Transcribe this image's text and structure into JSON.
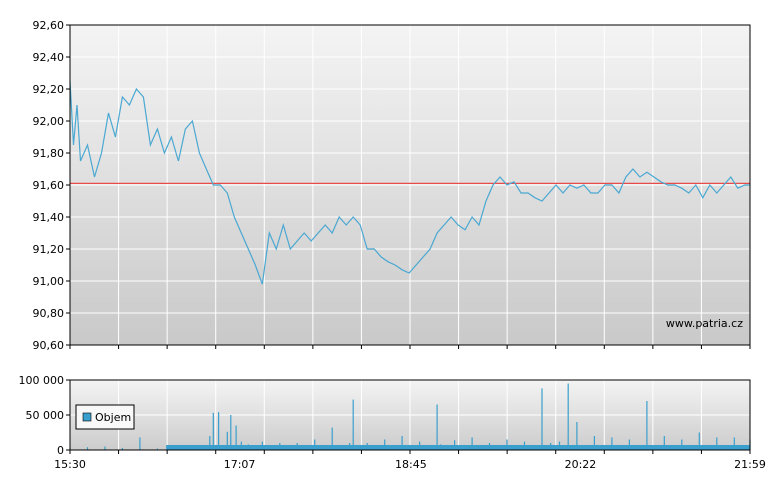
{
  "chart_data": [
    {
      "type": "line",
      "name": "price",
      "ylim": [
        90.6,
        92.6
      ],
      "yticks": [
        90.6,
        90.8,
        91.0,
        91.2,
        91.4,
        91.6,
        91.8,
        92.0,
        92.2,
        92.4,
        92.6
      ],
      "ytick_labels": [
        "90,60",
        "90,80",
        "91,00",
        "91,20",
        "91,40",
        "91,60",
        "91,80",
        "92,00",
        "92,20",
        "92,40",
        "92,60"
      ],
      "xlim": [
        "15:30",
        "21:59"
      ],
      "reference_line": {
        "value": 91.61,
        "color": "#e84a4a"
      },
      "line_color": "#4aa8d2",
      "watermark": "www.patria.cz",
      "grid": true,
      "series": [
        {
          "x": [
            "15:30",
            "15:32",
            "15:34",
            "15:36",
            "15:40",
            "15:44",
            "15:48",
            "15:52",
            "15:56",
            "16:00",
            "16:04",
            "16:08",
            "16:12",
            "16:16",
            "16:20",
            "16:24",
            "16:28",
            "16:32",
            "16:36",
            "16:40",
            "16:44",
            "16:48",
            "16:52",
            "16:56",
            "17:00",
            "17:04",
            "17:08",
            "17:12",
            "17:16",
            "17:20",
            "17:24",
            "17:28",
            "17:32",
            "17:36",
            "17:40",
            "17:44",
            "17:48",
            "17:52",
            "17:56",
            "18:00",
            "18:04",
            "18:08",
            "18:12",
            "18:16",
            "18:20",
            "18:24",
            "18:28",
            "18:32",
            "18:36",
            "18:40",
            "18:44",
            "18:48",
            "18:52",
            "18:56",
            "19:00",
            "19:04",
            "19:08",
            "19:12",
            "19:16",
            "19:20",
            "19:24",
            "19:28",
            "19:32",
            "19:36",
            "19:40",
            "19:44",
            "19:48",
            "19:52",
            "19:56",
            "20:00",
            "20:04",
            "20:08",
            "20:12",
            "20:16",
            "20:20",
            "20:24",
            "20:28",
            "20:32",
            "20:36",
            "20:40",
            "20:44",
            "20:48",
            "20:52",
            "20:56",
            "21:00",
            "21:04",
            "21:08",
            "21:12",
            "21:16",
            "21:20",
            "21:24",
            "21:28",
            "21:32",
            "21:36",
            "21:40",
            "21:44",
            "21:48",
            "21:52",
            "21:56",
            "21:59"
          ],
          "y": [
            92.25,
            91.85,
            92.1,
            91.75,
            91.85,
            91.65,
            91.8,
            92.05,
            91.9,
            92.15,
            92.1,
            92.2,
            92.15,
            91.85,
            91.95,
            91.8,
            91.9,
            91.75,
            91.95,
            92.0,
            91.8,
            91.7,
            91.6,
            91.6,
            91.55,
            91.4,
            91.3,
            91.2,
            91.1,
            90.98,
            91.3,
            91.2,
            91.35,
            91.2,
            91.25,
            91.3,
            91.25,
            91.3,
            91.35,
            91.3,
            91.4,
            91.35,
            91.4,
            91.35,
            91.2,
            91.2,
            91.15,
            91.12,
            91.1,
            91.07,
            91.05,
            91.1,
            91.15,
            91.2,
            91.3,
            91.35,
            91.4,
            91.35,
            91.32,
            91.4,
            91.35,
            91.5,
            91.6,
            91.65,
            91.6,
            91.62,
            91.55,
            91.55,
            91.52,
            91.5,
            91.55,
            91.6,
            91.55,
            91.6,
            91.58,
            91.6,
            91.55,
            91.55,
            91.6,
            91.6,
            91.55,
            91.65,
            91.7,
            91.65,
            91.68,
            91.65,
            91.62,
            91.6,
            91.6,
            91.58,
            91.55,
            91.6,
            91.52,
            91.6,
            91.55,
            91.6,
            91.65,
            91.58,
            91.6,
            91.6
          ]
        }
      ]
    },
    {
      "type": "bar",
      "name": "volume",
      "ylim": [
        0,
        100000
      ],
      "yticks": [
        0,
        50000,
        100000
      ],
      "ytick_labels": [
        "0",
        "50 000",
        "100 000"
      ],
      "xtick_labels": [
        "15:30",
        "17:07",
        "18:45",
        "20:22",
        "21:59"
      ],
      "legend": {
        "label": "Objem",
        "placement": "left"
      },
      "bar_color": "#3a9fcc",
      "series": [
        {
          "name": "Objem",
          "x": [
            "15:30",
            "15:40",
            "15:50",
            "16:00",
            "16:10",
            "16:20",
            "16:30",
            "16:40",
            "16:50",
            "16:52",
            "16:55",
            "17:00",
            "17:02",
            "17:05",
            "17:08",
            "17:12",
            "17:20",
            "17:30",
            "17:40",
            "17:50",
            "18:00",
            "18:10",
            "18:12",
            "18:20",
            "18:30",
            "18:40",
            "18:50",
            "19:00",
            "19:02",
            "19:10",
            "19:20",
            "19:30",
            "19:40",
            "19:50",
            "20:00",
            "20:05",
            "20:10",
            "20:15",
            "20:20",
            "20:30",
            "20:40",
            "20:50",
            "21:00",
            "21:10",
            "21:20",
            "21:30",
            "21:40",
            "21:50",
            "21:59"
          ],
          "values": [
            3000,
            4000,
            5000,
            3000,
            18000,
            2000,
            3000,
            4000,
            20000,
            53000,
            54000,
            26000,
            50000,
            35000,
            12000,
            8000,
            12000,
            10000,
            10000,
            15000,
            32000,
            10000,
            72000,
            10000,
            15000,
            20000,
            12000,
            65000,
            8000,
            14000,
            18000,
            10000,
            15000,
            12000,
            88000,
            10000,
            12000,
            95000,
            40000,
            20000,
            18000,
            15000,
            70000,
            20000,
            15000,
            25000,
            18000,
            18000,
            15000
          ]
        }
      ]
    }
  ]
}
